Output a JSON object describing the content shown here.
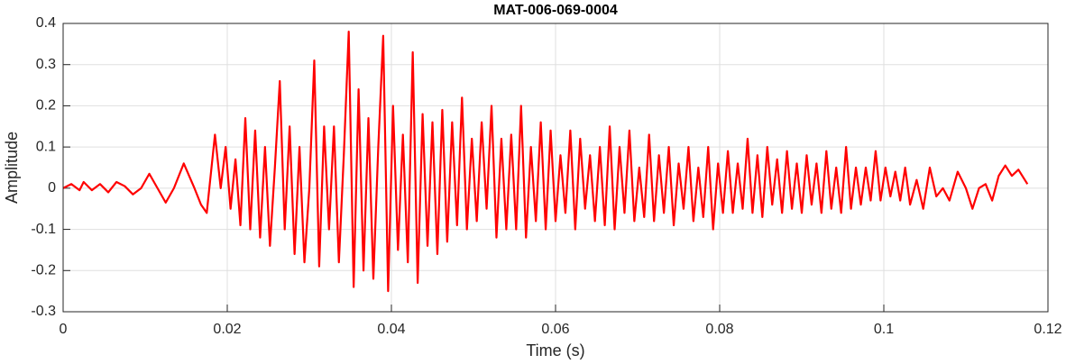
{
  "chart_data": {
    "type": "line",
    "title": "MAT-006-069-0004",
    "xlabel": "Time (s)",
    "ylabel": "Amplitude",
    "color": "#ff0000",
    "grid": true,
    "xlim": [
      0,
      0.12
    ],
    "xticks": [
      0,
      0.02,
      0.04,
      0.06,
      0.08,
      0.1,
      0.12
    ],
    "ylim": [
      -0.3,
      0.4
    ],
    "yticks": [
      -0.3,
      -0.2,
      -0.1,
      0,
      0.1,
      0.2,
      0.3,
      0.4
    ],
    "x": [
      0,
      0.001,
      0.002,
      0.0025,
      0.0035,
      0.0045,
      0.0055,
      0.0065,
      0.0075,
      0.0085,
      0.0095,
      0.0105,
      0.0115,
      0.0125,
      0.0135,
      0.0147,
      0.016,
      0.0168,
      0.0175,
      0.0185,
      0.0192,
      0.0198,
      0.0204,
      0.021,
      0.0216,
      0.0222,
      0.0228,
      0.0234,
      0.024,
      0.0246,
      0.0252,
      0.0258,
      0.0264,
      0.027,
      0.0276,
      0.0282,
      0.0288,
      0.0294,
      0.03,
      0.0306,
      0.0312,
      0.0318,
      0.0324,
      0.033,
      0.0336,
      0.0342,
      0.0348,
      0.0354,
      0.036,
      0.0366,
      0.0372,
      0.0378,
      0.0384,
      0.039,
      0.0396,
      0.0402,
      0.0408,
      0.0414,
      0.042,
      0.0426,
      0.0432,
      0.0438,
      0.0444,
      0.045,
      0.0456,
      0.0462,
      0.0468,
      0.0474,
      0.048,
      0.0486,
      0.0492,
      0.0498,
      0.0504,
      0.051,
      0.0516,
      0.0522,
      0.0528,
      0.0534,
      0.054,
      0.0546,
      0.0552,
      0.0558,
      0.0564,
      0.057,
      0.0576,
      0.0582,
      0.0588,
      0.0594,
      0.06,
      0.0606,
      0.0612,
      0.0618,
      0.0624,
      0.063,
      0.0636,
      0.0642,
      0.0648,
      0.0654,
      0.066,
      0.0666,
      0.0672,
      0.0678,
      0.0684,
      0.069,
      0.0696,
      0.0702,
      0.0708,
      0.0714,
      0.072,
      0.0726,
      0.0732,
      0.0738,
      0.0744,
      0.075,
      0.0756,
      0.0762,
      0.0768,
      0.0774,
      0.078,
      0.0786,
      0.0792,
      0.0798,
      0.0804,
      0.081,
      0.0816,
      0.0822,
      0.0828,
      0.0834,
      0.084,
      0.0846,
      0.0852,
      0.0858,
      0.0864,
      0.087,
      0.0876,
      0.0882,
      0.0888,
      0.0894,
      0.09,
      0.0906,
      0.0912,
      0.0918,
      0.0924,
      0.093,
      0.0936,
      0.0942,
      0.0948,
      0.0954,
      0.096,
      0.0966,
      0.0972,
      0.0978,
      0.0984,
      0.099,
      0.0996,
      0.1002,
      0.1008,
      0.1014,
      0.102,
      0.1026,
      0.1032,
      0.104,
      0.1048,
      0.1056,
      0.1064,
      0.1072,
      0.108,
      0.109,
      0.11,
      0.1108,
      0.1116,
      0.1124,
      0.1132,
      0.114,
      0.1148,
      0.1156,
      0.1164,
      0.1175
    ],
    "values": [
      0,
      0.01,
      -0.005,
      0.015,
      -0.005,
      0.01,
      -0.01,
      0.015,
      0.005,
      -0.015,
      0,
      0.035,
      0,
      -0.035,
      0,
      0.06,
      0,
      -0.04,
      -0.06,
      0.13,
      0,
      0.1,
      -0.05,
      0.07,
      -0.09,
      0.17,
      -0.1,
      0.14,
      -0.12,
      0.1,
      -0.14,
      0.05,
      0.26,
      -0.1,
      0.15,
      -0.16,
      0.1,
      -0.18,
      0,
      0.31,
      -0.19,
      0.15,
      -0.1,
      0.15,
      -0.18,
      0.08,
      0.38,
      -0.24,
      0.24,
      -0.2,
      0.17,
      -0.22,
      0.1,
      0.37,
      -0.25,
      0.2,
      -0.15,
      0.13,
      -0.18,
      0.33,
      -0.23,
      0.18,
      -0.14,
      0.16,
      -0.16,
      0.19,
      -0.13,
      0.16,
      -0.09,
      0.22,
      -0.1,
      0.12,
      -0.08,
      0.16,
      -0.05,
      0.2,
      -0.12,
      0.12,
      -0.1,
      0.13,
      -0.1,
      0.2,
      -0.12,
      0.1,
      -0.08,
      0.16,
      -0.1,
      0.14,
      -0.08,
      0.08,
      -0.06,
      0.14,
      -0.1,
      0.12,
      -0.05,
      0.08,
      -0.08,
      0.1,
      -0.09,
      0.15,
      -0.1,
      0.1,
      -0.06,
      0.14,
      -0.08,
      0.05,
      -0.07,
      0.13,
      -0.08,
      0.08,
      -0.06,
      0.1,
      -0.09,
      0.06,
      -0.05,
      0.1,
      -0.08,
      0.05,
      -0.07,
      0.1,
      -0.1,
      0.06,
      -0.06,
      0.09,
      -0.06,
      0.06,
      -0.05,
      0.12,
      -0.06,
      0.08,
      -0.07,
      0.1,
      -0.04,
      0.07,
      -0.06,
      0.09,
      -0.05,
      0.06,
      -0.06,
      0.08,
      -0.04,
      0.06,
      -0.06,
      0.09,
      -0.05,
      0.05,
      -0.06,
      0.1,
      -0.05,
      0.05,
      -0.04,
      0.05,
      -0.03,
      0.09,
      -0.03,
      0.05,
      -0.02,
      0.04,
      -0.03,
      0.05,
      -0.04,
      0.02,
      -0.05,
      0.05,
      -0.02,
      0,
      -0.03,
      0.04,
      0,
      -0.05,
      0,
      0.01,
      -0.03,
      0.03,
      0.055,
      0.03,
      0.045,
      0.01
    ]
  }
}
